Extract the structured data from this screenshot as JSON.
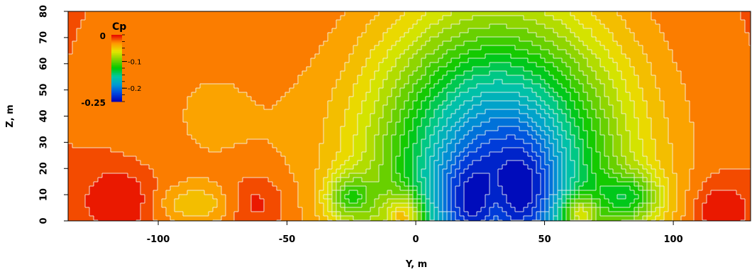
{
  "chart_data": {
    "type": "heatmap",
    "title": "",
    "xlabel": "Y, m",
    "ylabel": "Z, m",
    "xlim": [
      -135,
      130
    ],
    "ylim": [
      0,
      80
    ],
    "x_ticks": [
      "-100",
      "-50",
      "0",
      "50",
      "100"
    ],
    "x_tick_values": [
      -100,
      -50,
      0,
      50,
      100
    ],
    "y_ticks": [
      "0",
      "10",
      "20",
      "30",
      "40",
      "50",
      "60",
      "70",
      "80"
    ],
    "y_tick_values": [
      0,
      10,
      20,
      30,
      40,
      50,
      60,
      70,
      80
    ],
    "grid": false,
    "contour_lines": true,
    "contour_line_color": "#f4f4ee",
    "colorbar": {
      "title": "Cp",
      "placement": "top-left inside plot",
      "range": [
        -0.25,
        0
      ],
      "end_labels": [
        "0",
        "-0.25"
      ],
      "tick_labels": [
        "-0.1",
        "-0.2"
      ],
      "tick_values": [
        -0.1,
        -0.2
      ],
      "colormap": [
        "#0000b4",
        "#0048e0",
        "#009bd2",
        "#00c8a0",
        "#00c800",
        "#7dd200",
        "#e6e600",
        "#ff9600",
        "#e60000"
      ]
    },
    "field": {
      "description_values": "surface pressure coefficient Cp over (Y, Z)",
      "background": -0.02,
      "features": [
        {
          "kind": "trough",
          "y": 20,
          "z": 6,
          "cp": -0.245
        },
        {
          "kind": "trough",
          "y": 43,
          "z": 12,
          "cp": -0.235
        },
        {
          "kind": "trough",
          "y": 31,
          "z": 30,
          "cp": -0.2
        },
        {
          "kind": "local_min",
          "y": -26,
          "z": 9,
          "cp": -0.175
        },
        {
          "kind": "local_min",
          "y": 84,
          "z": 9,
          "cp": -0.175
        },
        {
          "kind": "local_max",
          "y": -4,
          "z": 2,
          "cp": -0.08
        },
        {
          "kind": "local_max",
          "y": 63,
          "z": 3,
          "cp": -0.08
        },
        {
          "kind": "local_max",
          "y": -115,
          "z": 10,
          "cp": 0.0
        },
        {
          "kind": "local_max",
          "y": -62,
          "z": 8,
          "cp": -0.01
        },
        {
          "kind": "local_max",
          "y": 117,
          "z": 5,
          "cp": 0.0
        },
        {
          "kind": "local_min",
          "y": -85,
          "z": 7,
          "cp": -0.045
        }
      ]
    }
  }
}
